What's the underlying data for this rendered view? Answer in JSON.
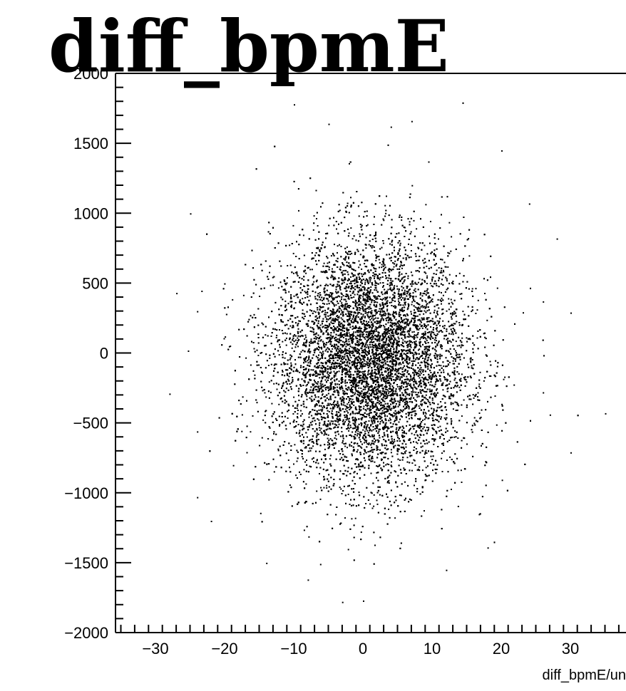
{
  "chart_data": {
    "type": "scatter",
    "title": "diff_bpmE",
    "xlabel": "diff_bpmE/un",
    "ylabel": "",
    "xlim": [
      -36,
      40
    ],
    "ylim": [
      -2000,
      2000
    ],
    "x_ticks": [
      -30,
      -20,
      -10,
      0,
      10,
      20,
      30
    ],
    "x_tick_labels": [
      "−30",
      "−20",
      "−10",
      "0",
      "10",
      "20",
      "30"
    ],
    "y_ticks": [
      -2000,
      -1500,
      -1000,
      -500,
      0,
      500,
      1000,
      1500,
      2000
    ],
    "y_tick_labels": [
      "−2000",
      "−1500",
      "−1000",
      "−500",
      "0",
      "500",
      "1000",
      "1500",
      "2000"
    ],
    "grid": false,
    "series": [
      {
        "distribution": "2D Gaussian point cloud",
        "x_center": 1,
        "y_center": -50,
        "x_sigma": 7,
        "y_sigma": 430,
        "n_points": 14000,
        "points": [
          [
            -28,
            -290
          ],
          [
            -25,
            1000
          ],
          [
            -27,
            430
          ],
          [
            -24,
            300
          ],
          [
            -24,
            -560
          ],
          [
            -24,
            -1030
          ],
          [
            -22,
            -1200
          ],
          [
            28,
            820
          ],
          [
            26,
            370
          ],
          [
            26,
            -280
          ],
          [
            27,
            -440
          ],
          [
            30,
            -710
          ],
          [
            30,
            290
          ],
          [
            35,
            -430
          ],
          [
            24,
            1070
          ],
          [
            20,
            1450
          ],
          [
            7,
            1660
          ],
          [
            -10,
            1780
          ],
          [
            -5,
            1640
          ],
          [
            4,
            1620
          ],
          [
            -8,
            -1620
          ],
          [
            0,
            -1770
          ],
          [
            12,
            -1550
          ],
          [
            18,
            -1390
          ],
          [
            -14,
            -1500
          ]
        ]
      }
    ]
  }
}
